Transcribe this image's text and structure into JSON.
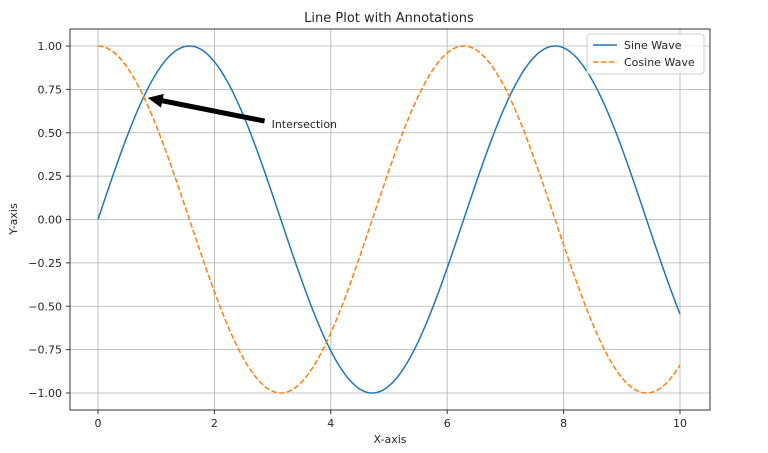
{
  "chart_data": {
    "type": "line",
    "title": "Line Plot with Annotations",
    "xlabel": "X-axis",
    "ylabel": "Y-axis",
    "xlim": [
      -0.5,
      10.5
    ],
    "ylim": [
      -1.1,
      1.1
    ],
    "grid": true,
    "legend_position": "upper right",
    "x_ticks": [
      0,
      2,
      4,
      6,
      8,
      10
    ],
    "x_tick_labels": [
      "0",
      "2",
      "4",
      "6",
      "8",
      "10"
    ],
    "y_ticks": [
      1.0,
      0.75,
      0.5,
      0.25,
      0.0,
      -0.25,
      -0.5,
      -0.75,
      -1.0
    ],
    "y_tick_labels": [
      "1.00",
      "0.75",
      "0.50",
      "0.25",
      "0.00",
      "−0.25",
      "−0.50",
      "−0.75",
      "−1.00"
    ],
    "x": [
      0,
      0.5,
      1,
      1.5,
      2,
      2.5,
      3,
      3.5,
      4,
      4.5,
      5,
      5.5,
      6,
      6.5,
      7,
      7.5,
      8,
      8.5,
      9,
      9.5,
      10
    ],
    "series": [
      {
        "name": "Sine Wave",
        "function": "sin(x)",
        "color": "#1f77b4",
        "linestyle": "solid",
        "values": [
          0.0,
          0.479,
          0.841,
          0.997,
          0.909,
          0.598,
          0.141,
          -0.351,
          -0.757,
          -0.978,
          -0.959,
          -0.706,
          -0.279,
          0.215,
          0.657,
          0.938,
          0.989,
          0.798,
          0.412,
          -0.075,
          -0.544
        ]
      },
      {
        "name": "Cosine Wave",
        "function": "cos(x)",
        "color": "#ff7f0e",
        "linestyle": "dashed",
        "values": [
          1.0,
          0.878,
          0.54,
          0.071,
          -0.416,
          -0.801,
          -0.99,
          -0.936,
          -0.654,
          -0.211,
          0.284,
          0.709,
          0.96,
          0.977,
          0.754,
          0.347,
          -0.146,
          -0.602,
          -0.911,
          -0.997,
          -0.839
        ]
      }
    ],
    "annotations": [
      {
        "text": "Intersection",
        "xy": [
          0.785,
          0.707
        ],
        "xytext": [
          3.0,
          0.55
        ],
        "arrow": true,
        "arrow_color": "#000000"
      }
    ]
  }
}
